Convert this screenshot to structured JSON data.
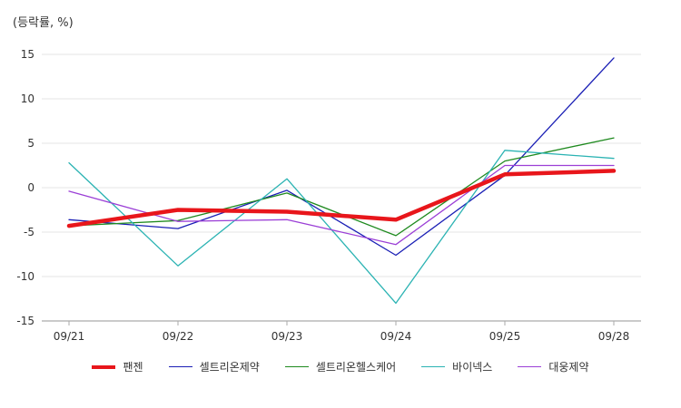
{
  "chart_data": {
    "type": "line",
    "unit_label": "(등락률, %)",
    "x": [
      "09/21",
      "09/22",
      "09/23",
      "09/24",
      "09/25",
      "09/28"
    ],
    "ylim": [
      -15,
      15
    ],
    "yticks": [
      15,
      10,
      5,
      0,
      -5,
      -10,
      -15
    ],
    "grid": true,
    "legend_position": "bottom",
    "series": [
      {
        "name": "팬젠",
        "color": "#e8161b",
        "emphasis": true,
        "values": [
          -4.3,
          -2.5,
          -2.7,
          -3.6,
          1.5,
          1.9
        ]
      },
      {
        "name": "셀트리온제약",
        "color": "#1a1fb5",
        "emphasis": false,
        "values": [
          -3.6,
          -4.6,
          -0.3,
          -7.6,
          1.4,
          14.6
        ]
      },
      {
        "name": "셀트리온헬스케어",
        "color": "#1f8a1f",
        "emphasis": false,
        "values": [
          -4.3,
          -3.7,
          -0.6,
          -5.4,
          3.0,
          5.6
        ]
      },
      {
        "name": "바이넥스",
        "color": "#2bb3b3",
        "emphasis": false,
        "values": [
          2.8,
          -8.8,
          1.0,
          -13.0,
          4.2,
          3.3
        ]
      },
      {
        "name": "대웅제약",
        "color": "#9b3fd6",
        "emphasis": false,
        "values": [
          -0.4,
          -3.8,
          -3.6,
          -6.4,
          2.5,
          2.5
        ]
      }
    ]
  }
}
